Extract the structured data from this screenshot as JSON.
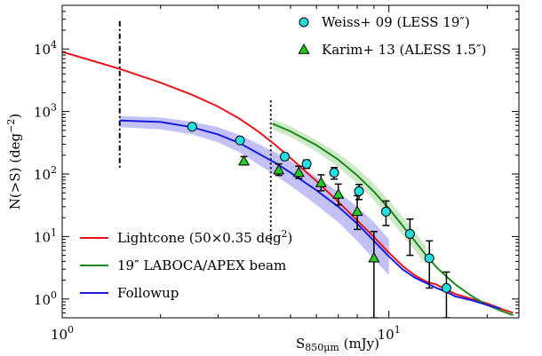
{
  "chart_data": {
    "type": "line",
    "xlabel": "S",
    "xlabel_sub": "850μm",
    "xlabel_unit": " (mJy)",
    "ylabel": "N(>S) (deg",
    "ylabel_sup": "−2",
    "ylabel_end": ")",
    "xscale": "log",
    "yscale": "log",
    "xlim": [
      1,
      25
    ],
    "ylim": [
      0.5,
      50000
    ],
    "grid": false,
    "x_ticks": [
      {
        "value": 1,
        "base": "10",
        "exp": "0"
      },
      {
        "value": 10,
        "base": "10",
        "exp": "1"
      }
    ],
    "y_ticks": [
      {
        "value": 1,
        "base": "10",
        "exp": "0"
      },
      {
        "value": 10,
        "base": "10",
        "exp": "1"
      },
      {
        "value": 100,
        "base": "10",
        "exp": "2"
      },
      {
        "value": 1000,
        "base": "10",
        "exp": "3"
      },
      {
        "value": 10000,
        "base": "10",
        "exp": "4"
      }
    ],
    "series": [
      {
        "name": "Lightcone (50×0.35 deg",
        "name_sup": "2",
        "name_end": ")",
        "color": "#e8161b",
        "x": [
          1.0,
          1.2,
          1.5,
          2.0,
          2.5,
          3.0,
          3.5,
          4.0,
          4.5,
          5.0,
          6.0,
          7.0,
          8.0,
          9.0,
          10.0,
          11.0,
          12.0,
          13.0,
          14.0,
          15.0,
          16.0,
          18.0,
          20.0,
          22.0,
          24.0
        ],
        "y": [
          9000,
          6800,
          4800,
          2900,
          1850,
          1200,
          760,
          470,
          290,
          180,
          77,
          36,
          18,
          9.8,
          5.5,
          3.4,
          2.4,
          1.9,
          1.7,
          1.4,
          1.2,
          1.0,
          0.85,
          0.7,
          0.6
        ]
      },
      {
        "name": "19″ LABOCA/APEX beam",
        "color": "#1b8a1b",
        "x": [
          4.4,
          5.0,
          6.0,
          7.0,
          8.0,
          9.0,
          10.0,
          11.0,
          12.0,
          13.0,
          14.0,
          15.0,
          16.0,
          18.0,
          20.0,
          22.0,
          24.0
        ],
        "y": [
          640,
          480,
          290,
          170,
          95,
          52,
          28,
          15,
          8.5,
          5.0,
          3.2,
          2.3,
          1.7,
          1.1,
          0.8,
          0.65,
          0.55
        ]
      },
      {
        "name": "Followup",
        "color": "#1a1ae0",
        "x": [
          1.5,
          2.0,
          2.5,
          3.0,
          3.5,
          4.0,
          4.5,
          5.0,
          5.5,
          6.0,
          7.0,
          8.0,
          9.0,
          10.0,
          11.0,
          12.0,
          13.0,
          14.0,
          15.0,
          16.0,
          18.0,
          20.0,
          22.0
        ],
        "y": [
          720,
          680,
          560,
          430,
          310,
          210,
          150,
          105,
          75,
          55,
          30,
          16,
          8.5,
          4.8,
          3.0,
          2.2,
          1.8,
          1.5,
          1.3,
          1.1,
          0.95,
          0.8,
          0.7
        ]
      }
    ],
    "band": {
      "series": "Followup",
      "color": "#9a9af0",
      "x": [
        1.5,
        2.0,
        2.5,
        3.0,
        3.5,
        4.0,
        4.5,
        5.0,
        5.5,
        6.0,
        7.0,
        8.0,
        9.0,
        10.0
      ],
      "lower": [
        560,
        520,
        430,
        320,
        220,
        140,
        95,
        65,
        45,
        32,
        17,
        8.5,
        4.3,
        2.4
      ],
      "upper": [
        850,
        800,
        690,
        560,
        420,
        300,
        220,
        160,
        120,
        90,
        52,
        30,
        17,
        9.0
      ]
    },
    "band2": {
      "series": "19″ LABOCA/APEX beam",
      "color": "#b9e0b0",
      "x": [
        4.4,
        5.0,
        6.0,
        7.0,
        8.0,
        9.0,
        10.0,
        11.0,
        12.0,
        13.0
      ],
      "lower": [
        520,
        390,
        230,
        130,
        70,
        38,
        20,
        10.5,
        6.0,
        3.5
      ],
      "upper": [
        760,
        580,
        350,
        215,
        125,
        70,
        38,
        21,
        12,
        7.0
      ]
    },
    "points": [
      {
        "name": "Weiss+ 09 (LESS 19″)",
        "marker": "circle",
        "color": "#22e0e0",
        "x": [
          2.5,
          3.5,
          4.8,
          5.6,
          6.8,
          8.1,
          9.8,
          11.6,
          13.3,
          15.0
        ],
        "y": [
          570,
          345,
          190,
          145,
          105,
          53,
          25,
          11,
          4.5,
          1.5
        ],
        "err_low": [
          20,
          20,
          22,
          22,
          22,
          14,
          10,
          6,
          3,
          1
        ],
        "err_high": [
          20,
          20,
          22,
          22,
          22,
          15,
          12,
          8,
          4,
          1.2
        ]
      },
      {
        "name": "Karim+ 13 (ALESS 1.5″)",
        "marker": "triangle",
        "color": "#22cc22",
        "x": [
          3.6,
          4.6,
          5.3,
          6.2,
          7.0,
          8.0,
          9.0
        ],
        "y": [
          160,
          115,
          105,
          72,
          47,
          25,
          4.5
        ],
        "err_low": [
          20,
          20,
          20,
          18,
          15,
          12,
          4.0
        ],
        "err_high": [
          30,
          30,
          28,
          25,
          22,
          20,
          7.5
        ]
      }
    ],
    "vlines": [
      {
        "x": 1.5,
        "ymin": 120,
        "ymax": 28000,
        "style": "dashdot"
      },
      {
        "x": 4.35,
        "ymin": 7,
        "ymax": 1500,
        "style": "dotted"
      }
    ],
    "legend_lines_position": "lower-left",
    "legend_points_position": "upper-right"
  }
}
